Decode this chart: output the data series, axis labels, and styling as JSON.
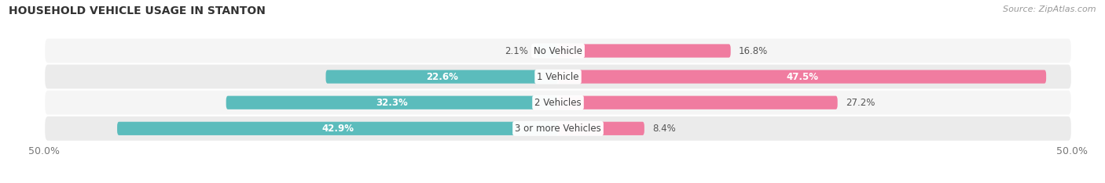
{
  "title": "HOUSEHOLD VEHICLE USAGE IN STANTON",
  "source": "Source: ZipAtlas.com",
  "categories": [
    "No Vehicle",
    "1 Vehicle",
    "2 Vehicles",
    "3 or more Vehicles"
  ],
  "owner_values": [
    2.1,
    22.6,
    32.3,
    42.9
  ],
  "renter_values": [
    16.8,
    47.5,
    27.2,
    8.4
  ],
  "owner_color": "#5bbcbc",
  "renter_color": "#f07ca0",
  "xlim": [
    -50,
    50
  ],
  "title_fontsize": 10,
  "source_fontsize": 8,
  "label_fontsize": 8.5,
  "category_fontsize": 8.5,
  "bar_height": 0.52,
  "background_color": "#ffffff",
  "row_bg_even": "#f5f5f5",
  "row_bg_odd": "#ebebeb"
}
